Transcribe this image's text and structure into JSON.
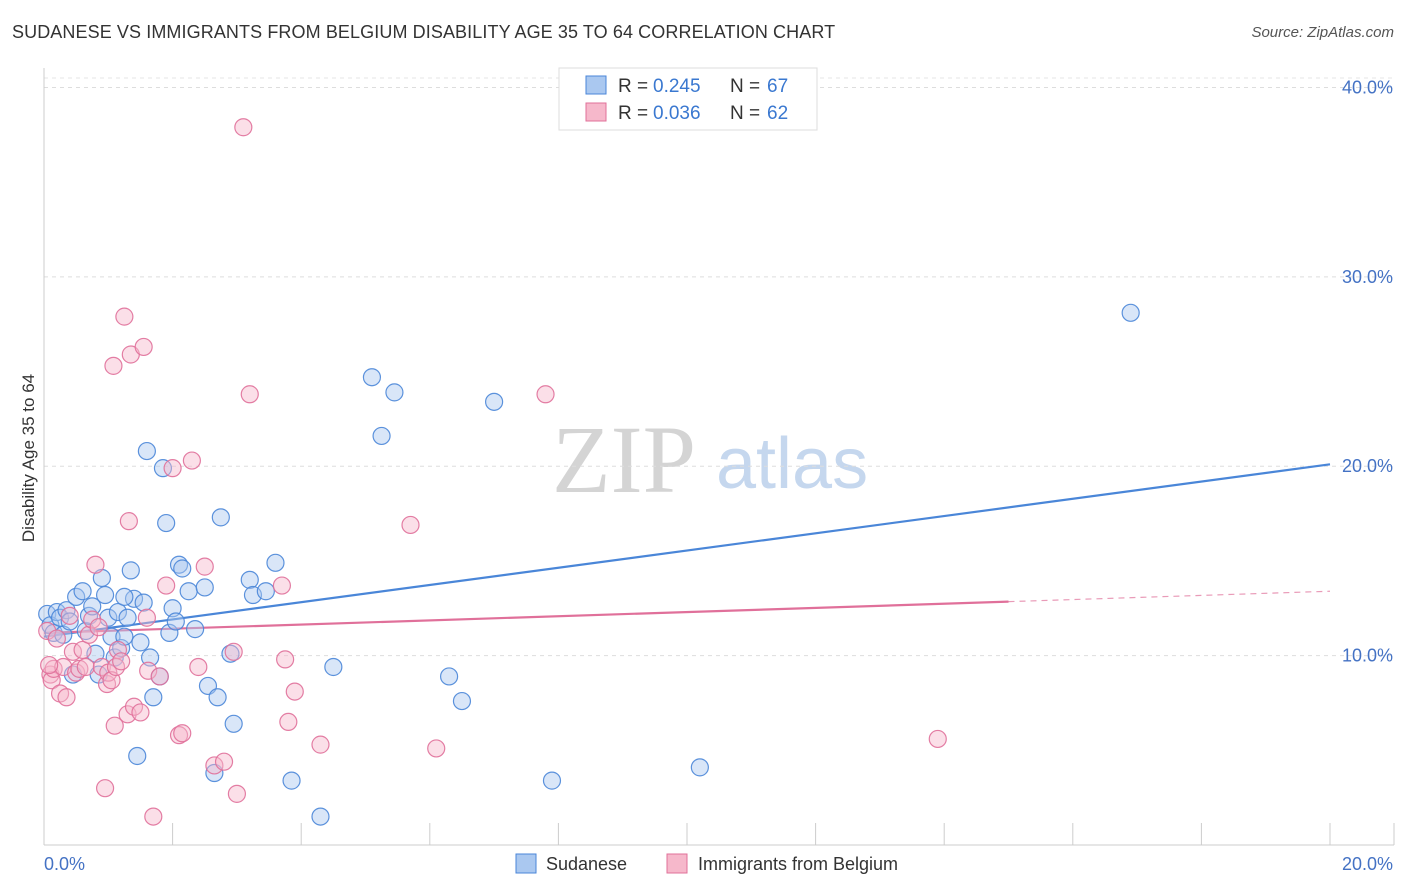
{
  "chart_data": {
    "type": "scatter",
    "title": "SUDANESE VS IMMIGRANTS FROM BELGIUM DISABILITY AGE 35 TO 64 CORRELATION CHART",
    "source": "Source: ZipAtlas.com",
    "xlabel": "",
    "ylabel": "Disability Age 35 to 64",
    "xlim": [
      0,
      20
    ],
    "ylim": [
      0,
      40.5
    ],
    "x_tick_labels": [
      "0.0%",
      "20.0%"
    ],
    "y_ticks": [
      10,
      20,
      30,
      40
    ],
    "y_tick_labels": [
      "10.0%",
      "20.0%",
      "30.0%",
      "40.0%"
    ],
    "watermark": {
      "zip": "ZIP",
      "atlas": "atlas"
    },
    "legend": {
      "entries": [
        {
          "r_label": "R =",
          "r_value": "0.245",
          "n_label": "N =",
          "n_value": "67"
        },
        {
          "r_label": "R =",
          "r_value": "0.036",
          "n_label": "N =",
          "n_value": "62"
        }
      ]
    },
    "series": [
      {
        "name": "Sudanese",
        "color": "#4a86d8",
        "fill": "#aac8f0",
        "trend": {
          "x0": 0,
          "y0": 11.0,
          "x1": 20,
          "y1": 20.1,
          "solid_to": 20
        },
        "points": [
          [
            0.05,
            12.2
          ],
          [
            0.1,
            11.6
          ],
          [
            0.15,
            11.2
          ],
          [
            0.2,
            12.3
          ],
          [
            0.25,
            12.0
          ],
          [
            0.3,
            11.1
          ],
          [
            0.35,
            12.4
          ],
          [
            0.4,
            11.8
          ],
          [
            0.5,
            13.1
          ],
          [
            0.6,
            13.4
          ],
          [
            0.65,
            11.3
          ],
          [
            0.7,
            12.1
          ],
          [
            0.75,
            12.6
          ],
          [
            0.8,
            10.1
          ],
          [
            0.85,
            9.0
          ],
          [
            0.9,
            14.1
          ],
          [
            0.95,
            13.2
          ],
          [
            1.0,
            12.0
          ],
          [
            1.05,
            11.0
          ],
          [
            1.1,
            9.9
          ],
          [
            1.15,
            12.3
          ],
          [
            1.2,
            10.4
          ],
          [
            1.25,
            11.0
          ],
          [
            1.3,
            12.0
          ],
          [
            1.35,
            14.5
          ],
          [
            1.4,
            13.0
          ],
          [
            1.45,
            4.7
          ],
          [
            1.5,
            10.7
          ],
          [
            1.55,
            12.8
          ],
          [
            1.6,
            20.8
          ],
          [
            1.65,
            9.9
          ],
          [
            1.7,
            7.8
          ],
          [
            1.8,
            8.9
          ],
          [
            1.85,
            19.9
          ],
          [
            1.9,
            17.0
          ],
          [
            1.95,
            11.2
          ],
          [
            2.0,
            12.5
          ],
          [
            2.05,
            11.8
          ],
          [
            2.1,
            14.8
          ],
          [
            2.15,
            14.6
          ],
          [
            2.25,
            13.4
          ],
          [
            2.35,
            11.4
          ],
          [
            2.5,
            13.6
          ],
          [
            2.55,
            8.4
          ],
          [
            2.65,
            3.8
          ],
          [
            2.7,
            7.8
          ],
          [
            2.75,
            17.3
          ],
          [
            2.9,
            10.1
          ],
          [
            2.95,
            6.4
          ],
          [
            3.2,
            14.0
          ],
          [
            3.25,
            13.2
          ],
          [
            3.45,
            13.4
          ],
          [
            3.6,
            14.9
          ],
          [
            3.85,
            3.4
          ],
          [
            4.3,
            1.5
          ],
          [
            4.5,
            9.4
          ],
          [
            5.1,
            24.7
          ],
          [
            5.25,
            21.6
          ],
          [
            5.45,
            23.9
          ],
          [
            6.3,
            8.9
          ],
          [
            6.5,
            7.6
          ],
          [
            7.0,
            23.4
          ],
          [
            7.9,
            3.4
          ],
          [
            10.2,
            4.1
          ],
          [
            16.9,
            28.1
          ],
          [
            0.45,
            9.0
          ],
          [
            1.25,
            13.1
          ]
        ]
      },
      {
        "name": "Immigrants from Belgium",
        "color": "#e0709a",
        "fill": "#f6b8cb",
        "trend": {
          "x0": 0,
          "y0": 11.2,
          "x1": 20,
          "y1": 13.4,
          "solid_to": 15
        },
        "points": [
          [
            0.05,
            11.3
          ],
          [
            0.1,
            9.0
          ],
          [
            0.12,
            8.7
          ],
          [
            0.15,
            9.3
          ],
          [
            0.2,
            10.9
          ],
          [
            0.25,
            8.0
          ],
          [
            0.3,
            9.4
          ],
          [
            0.35,
            7.8
          ],
          [
            0.4,
            12.1
          ],
          [
            0.45,
            10.2
          ],
          [
            0.5,
            9.1
          ],
          [
            0.55,
            9.3
          ],
          [
            0.6,
            10.3
          ],
          [
            0.65,
            9.4
          ],
          [
            0.7,
            11.1
          ],
          [
            0.75,
            11.9
          ],
          [
            0.8,
            14.8
          ],
          [
            0.85,
            11.5
          ],
          [
            0.9,
            9.4
          ],
          [
            0.95,
            3.0
          ],
          [
            0.98,
            8.5
          ],
          [
            1.0,
            9.1
          ],
          [
            1.05,
            8.7
          ],
          [
            1.1,
            6.3
          ],
          [
            1.12,
            9.4
          ],
          [
            1.15,
            10.3
          ],
          [
            1.2,
            9.7
          ],
          [
            1.25,
            27.9
          ],
          [
            1.3,
            6.9
          ],
          [
            1.32,
            17.1
          ],
          [
            1.35,
            25.9
          ],
          [
            1.4,
            7.3
          ],
          [
            1.5,
            7.0
          ],
          [
            1.55,
            26.3
          ],
          [
            1.6,
            12.0
          ],
          [
            1.62,
            9.2
          ],
          [
            1.7,
            1.5
          ],
          [
            1.8,
            8.9
          ],
          [
            1.9,
            13.7
          ],
          [
            2.0,
            19.9
          ],
          [
            2.1,
            5.8
          ],
          [
            2.15,
            5.9
          ],
          [
            2.3,
            20.3
          ],
          [
            2.4,
            9.4
          ],
          [
            2.5,
            14.7
          ],
          [
            2.65,
            4.2
          ],
          [
            2.8,
            4.4
          ],
          [
            2.95,
            10.2
          ],
          [
            3.0,
            2.7
          ],
          [
            3.1,
            37.9
          ],
          [
            3.2,
            23.8
          ],
          [
            3.7,
            13.7
          ],
          [
            3.75,
            9.8
          ],
          [
            3.8,
            6.5
          ],
          [
            3.9,
            8.1
          ],
          [
            4.3,
            5.3
          ],
          [
            5.7,
            16.9
          ],
          [
            6.1,
            5.1
          ],
          [
            7.8,
            23.8
          ],
          [
            13.9,
            5.6
          ],
          [
            0.08,
            9.5
          ],
          [
            1.08,
            25.3
          ]
        ]
      }
    ]
  },
  "bottom_legend": [
    {
      "label": "Sudanese",
      "color": "#aac8f0",
      "border": "#4a86d8"
    },
    {
      "label": "Immigrants from Belgium",
      "color": "#f6b8cb",
      "border": "#e0709a"
    }
  ]
}
